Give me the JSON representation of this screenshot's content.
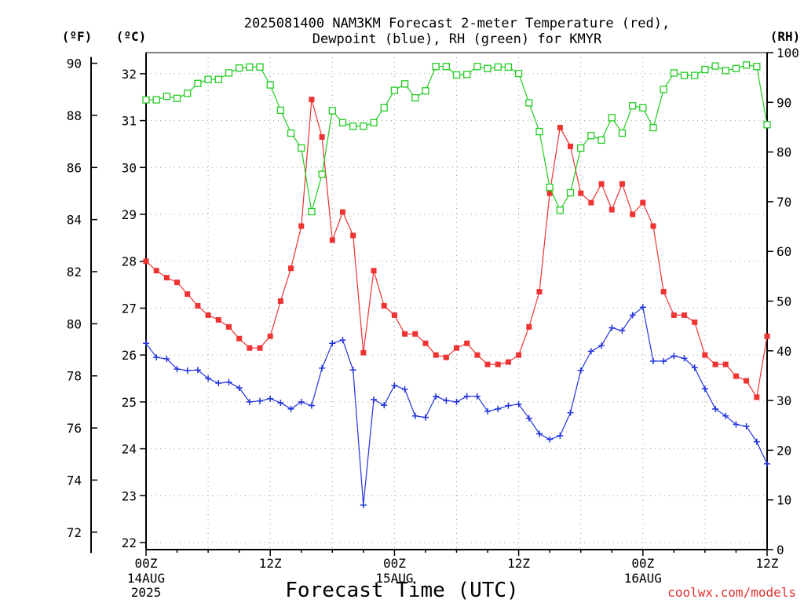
{
  "chart_data": {
    "type": "line",
    "title_line1": "2025081400 NAM3KM Forecast 2-meter Temperature (red),",
    "title_line2": "Dewpoint (blue), RH (green) for KMYR",
    "xlabel": "Forecast Time (UTC)",
    "credit": "coolwx.com/models",
    "units": {
      "fahrenheit": "(ºF)",
      "celsius": "(ºC)",
      "rh": "(RH)"
    },
    "x_range_hours": [
      0,
      60
    ],
    "x_ticks": [
      {
        "h": 0,
        "label": "00Z",
        "date": "14AUG",
        "year": "2025"
      },
      {
        "h": 12,
        "label": "12Z",
        "date": "",
        "year": ""
      },
      {
        "h": 24,
        "label": "00Z",
        "date": "15AUG",
        "year": ""
      },
      {
        "h": 36,
        "label": "12Z",
        "date": "",
        "year": ""
      },
      {
        "h": 48,
        "label": "00Z",
        "date": "16AUG",
        "year": ""
      },
      {
        "h": 60,
        "label": "12Z",
        "date": "",
        "year": ""
      }
    ],
    "celsius_range": [
      21.85,
      32.45
    ],
    "celsius_ticks": [
      22,
      23,
      24,
      25,
      26,
      27,
      28,
      29,
      30,
      31,
      32
    ],
    "fahrenheit_ticks": [
      72,
      74,
      76,
      78,
      80,
      82,
      84,
      86,
      88,
      90
    ],
    "rh_range": [
      0,
      100
    ],
    "rh_ticks": [
      0,
      10,
      20,
      30,
      40,
      50,
      60,
      70,
      80,
      90,
      100
    ],
    "grid": true,
    "series": [
      {
        "name": "Temperature",
        "color": "#ee3333",
        "marker": "filled-square",
        "axis": "celsius",
        "values": [
          28.0,
          27.8,
          27.65,
          27.55,
          27.3,
          27.05,
          26.85,
          26.75,
          26.6,
          26.35,
          26.15,
          26.15,
          26.4,
          27.15,
          27.85,
          28.75,
          31.45,
          30.65,
          28.45,
          29.05,
          28.55,
          26.05,
          27.8,
          27.05,
          26.85,
          26.45,
          26.45,
          26.25,
          26.0,
          25.95,
          26.15,
          26.25,
          26.0,
          25.8,
          25.8,
          25.85,
          26.0,
          26.6,
          27.35,
          29.45,
          30.85,
          30.45,
          29.45,
          29.25,
          29.65,
          29.1,
          29.65,
          29.0,
          29.25,
          28.75,
          27.35,
          26.85,
          26.85,
          26.7,
          26.0,
          25.8,
          25.8,
          25.55,
          25.45,
          25.1,
          26.4
        ]
      },
      {
        "name": "Dewpoint",
        "color": "#2233dd",
        "marker": "plus",
        "axis": "celsius",
        "values": [
          26.25,
          25.95,
          25.92,
          25.7,
          25.67,
          25.68,
          25.5,
          25.4,
          25.42,
          25.3,
          25.0,
          25.02,
          25.07,
          24.98,
          24.85,
          25.0,
          24.92,
          25.72,
          26.25,
          26.32,
          25.68,
          22.8,
          25.05,
          24.93,
          25.35,
          25.27,
          24.7,
          24.67,
          25.12,
          25.03,
          25.0,
          25.12,
          25.12,
          24.8,
          24.85,
          24.92,
          24.95,
          24.65,
          24.32,
          24.2,
          24.28,
          24.77,
          25.67,
          26.08,
          26.2,
          26.58,
          26.52,
          26.85,
          27.02,
          25.87,
          25.87,
          25.98,
          25.93,
          25.73,
          25.28,
          24.85,
          24.7,
          24.52,
          24.48,
          24.15,
          23.68
        ]
      },
      {
        "name": "RH",
        "color": "#22cc22",
        "marker": "open-square",
        "axis": "rh",
        "values": [
          90.5,
          90.5,
          91.2,
          90.8,
          91.8,
          93.8,
          94.6,
          94.6,
          95.9,
          96.9,
          97.1,
          97.1,
          93.5,
          88.4,
          83.8,
          80.8,
          68.0,
          75.5,
          88.3,
          85.9,
          85.2,
          85.2,
          85.9,
          88.9,
          92.4,
          93.7,
          90.9,
          92.3,
          97.2,
          97.2,
          95.5,
          95.6,
          97.2,
          96.8,
          97.1,
          97.1,
          95.8,
          89.9,
          84.1,
          72.9,
          68.3,
          71.8,
          80.8,
          83.3,
          82.4,
          86.9,
          83.8,
          89.3,
          88.9,
          84.9,
          92.6,
          95.9,
          95.4,
          95.4,
          96.6,
          97.3,
          96.4,
          96.8,
          97.5,
          97.2,
          85.5
        ]
      }
    ]
  }
}
